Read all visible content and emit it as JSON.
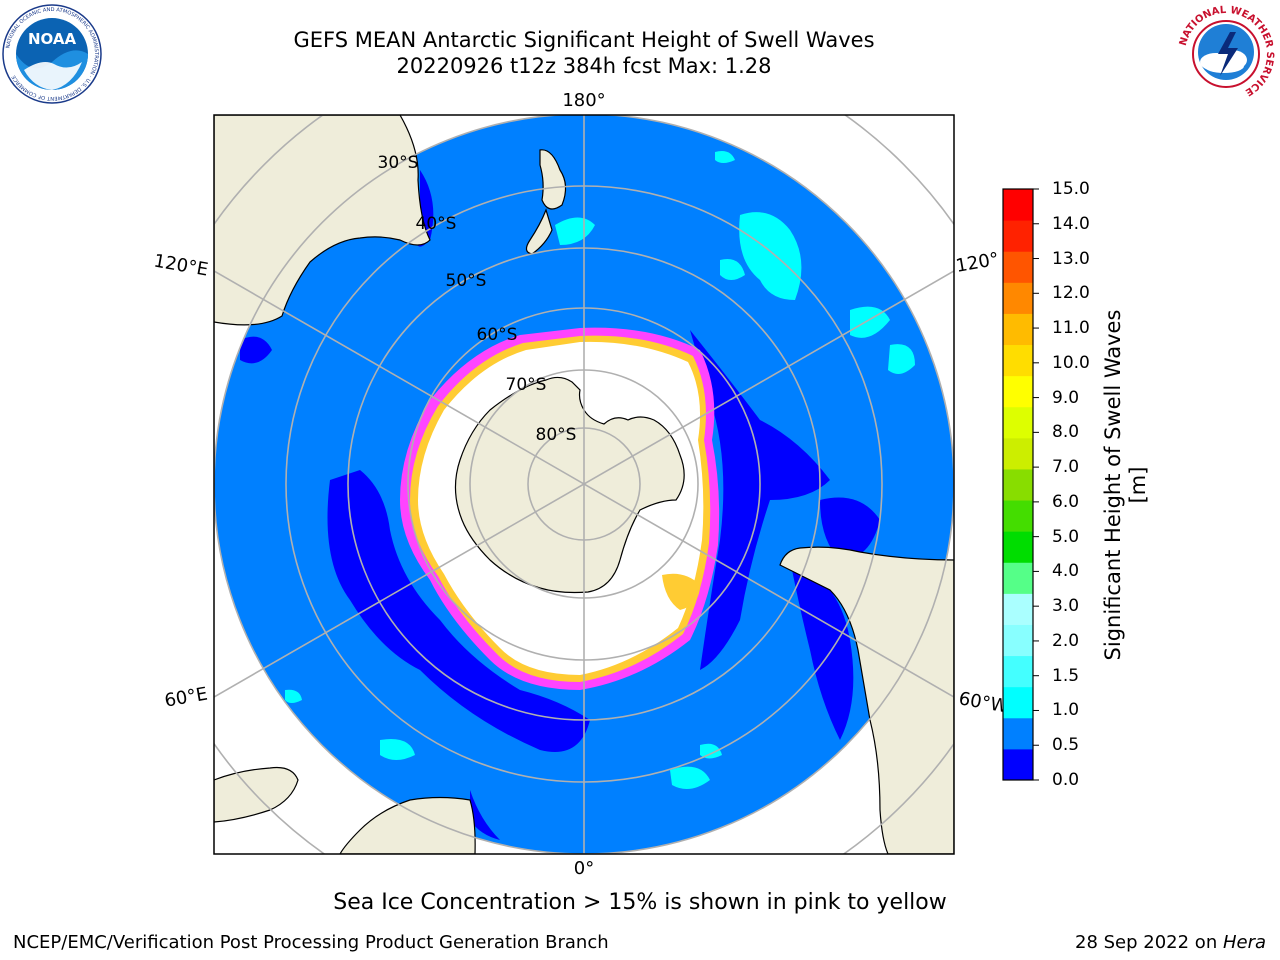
{
  "header": {
    "title_line1": "GEFS MEAN Antarctic Significant Height of Swell Waves",
    "title_line2": "20220926 t12z 384h fcst   Max: 1.28",
    "left_logo": {
      "icon": "noaa-logo-icon",
      "text": "NOAA",
      "ring_text": "NATIONAL OCEANIC AND ATMOSPHERIC ADMINISTRATION · U.S. DEPARTMENT OF COMMERCE"
    },
    "right_logo": {
      "icon": "national-weather-service-logo-icon",
      "ring_text": "NATIONAL WEATHER SERVICE"
    }
  },
  "map": {
    "projection": "south-polar-stereographic",
    "longitude_labels": {
      "top": "180°",
      "bottom": "0°",
      "upper_left": "120°E",
      "lower_left": "60°E",
      "upper_right": "120°",
      "lower_right": "60°W"
    },
    "latitude_labels": [
      "30°S",
      "40°S",
      "50°S",
      "60°S",
      "70°S",
      "80°S"
    ],
    "colors": {
      "land": "#efedda",
      "ocean_swell": "#0080ff",
      "low_swell": "#0000ff",
      "swell_light": "#00ffff",
      "sea_ice": "#ffffff",
      "ice_edge_pink": "#ff44ff",
      "ice_edge_yellow": "#ffcc33",
      "graticule": "#b0b0b0"
    }
  },
  "colorbar": {
    "label": "Significant Height of Swell Waves [m]",
    "ticks": [
      "15.0",
      "14.0",
      "13.0",
      "12.0",
      "11.0",
      "10.0",
      "9.0",
      "8.0",
      "7.0",
      "6.0",
      "5.0",
      "4.0",
      "3.0",
      "2.0",
      "1.5",
      "1.0",
      "0.5",
      "0.0"
    ],
    "colors_bottom_to_top": [
      "#0000ff",
      "#0080ff",
      "#00ffff",
      "#44ffff",
      "#88ffff",
      "#aaffff",
      "#55ff88",
      "#00dd00",
      "#44dd00",
      "#88dd00",
      "#ccee00",
      "#ddff00",
      "#ffff00",
      "#ffdd00",
      "#ffbb00",
      "#ff8800",
      "#ff5500",
      "#ff2200",
      "#ff0000"
    ]
  },
  "footer": {
    "caption": "Sea Ice Concentration > 15% is shown in pink to yellow",
    "left": "NCEP/EMC/Verification Post Processing Product Generation Branch",
    "right_prefix": "28 Sep 2022 on ",
    "right_host": "Hera"
  }
}
